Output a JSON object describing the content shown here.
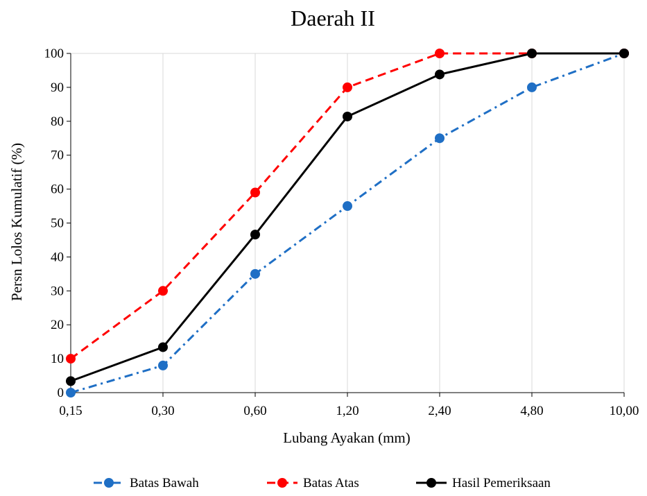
{
  "chart_data": {
    "type": "line",
    "title": "Daerah II",
    "xlabel": "Lubang Ayakan (mm)",
    "ylabel": "Persn Lolos Kumulatif (%)",
    "categories": [
      "0,15",
      "0,30",
      "0,60",
      "1,20",
      "2,40",
      "4,80",
      "10,00"
    ],
    "ylim": [
      0,
      100
    ],
    "yticks": [
      0,
      10,
      20,
      30,
      40,
      50,
      60,
      70,
      80,
      90,
      100
    ],
    "grid": "vertical",
    "legend_position": "bottom",
    "series": [
      {
        "name": "Batas Bawah",
        "values": [
          0,
          8,
          35,
          55,
          75,
          90,
          100
        ],
        "color": "#1f6fc5",
        "style": "dash-dot"
      },
      {
        "name": "Batas Atas",
        "values": [
          10,
          30,
          59,
          90,
          100,
          100,
          100
        ],
        "color": "#ff0000",
        "style": "dashed"
      },
      {
        "name": "Hasil Pemeriksaan",
        "values": [
          3.4,
          13.4,
          46.6,
          81.4,
          93.8,
          100,
          100
        ],
        "color": "#000000",
        "style": "solid"
      }
    ]
  }
}
